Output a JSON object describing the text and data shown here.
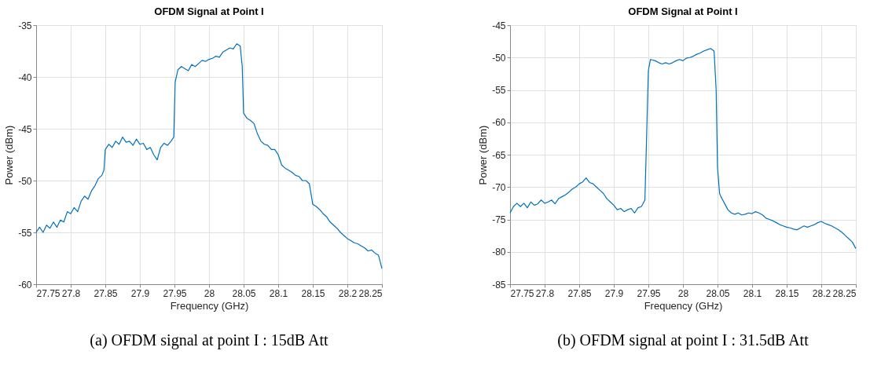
{
  "chart_data": [
    {
      "type": "line",
      "title": "OFDM Signal at Point I",
      "xlabel": "Frequency (GHz)",
      "ylabel": "Power (dBm)",
      "xlim": [
        27.75,
        28.25
      ],
      "xticks": [
        27.75,
        27.8,
        27.85,
        27.9,
        27.95,
        28,
        28.05,
        28.1,
        28.15,
        28.2,
        28.25
      ],
      "ylim": [
        -60,
        -35
      ],
      "yticks": [
        -60,
        -55,
        -50,
        -45,
        -40,
        -35
      ],
      "grid": true,
      "annotations": [
        "(a) OFDM signal at point I : 15dB Att"
      ],
      "x": [
        27.75,
        27.755,
        27.76,
        27.765,
        27.77,
        27.775,
        27.78,
        27.785,
        27.79,
        27.795,
        27.8,
        27.805,
        27.81,
        27.815,
        27.82,
        27.825,
        27.83,
        27.835,
        27.84,
        27.845,
        27.848,
        27.85,
        27.855,
        27.86,
        27.865,
        27.87,
        27.875,
        27.88,
        27.885,
        27.89,
        27.895,
        27.9,
        27.905,
        27.91,
        27.915,
        27.92,
        27.925,
        27.93,
        27.935,
        27.94,
        27.945,
        27.949,
        27.951,
        27.955,
        27.96,
        27.965,
        27.97,
        27.975,
        27.98,
        27.985,
        27.99,
        27.995,
        28.0,
        28.005,
        28.01,
        28.015,
        28.02,
        28.025,
        28.03,
        28.035,
        28.04,
        28.045,
        28.048,
        28.05,
        28.055,
        28.06,
        28.065,
        28.07,
        28.075,
        28.08,
        28.085,
        28.09,
        28.095,
        28.1,
        28.105,
        28.11,
        28.115,
        28.12,
        28.125,
        28.13,
        28.135,
        28.14,
        28.145,
        28.15,
        28.155,
        28.16,
        28.165,
        28.17,
        28.175,
        28.18,
        28.185,
        28.19,
        28.195,
        28.2,
        28.205,
        28.21,
        28.215,
        28.22,
        28.225,
        28.23,
        28.235,
        28.24,
        28.245,
        28.25
      ],
      "series": [
        {
          "color": "#0072bd",
          "values": [
            -55,
            -54.5,
            -55,
            -54.3,
            -54.6,
            -54,
            -54.5,
            -53.8,
            -54,
            -53,
            -53.2,
            -52.6,
            -53,
            -52,
            -51.5,
            -51.8,
            -51,
            -50.5,
            -49.8,
            -49.5,
            -49,
            -47,
            -46.5,
            -46.8,
            -46.2,
            -46.5,
            -45.8,
            -46.3,
            -46.2,
            -46.6,
            -46,
            -46.5,
            -46.4,
            -47,
            -46.8,
            -47.5,
            -48,
            -46.8,
            -46.4,
            -46.6,
            -46.2,
            -45.8,
            -40.5,
            -39.3,
            -39,
            -39.2,
            -39.4,
            -38.8,
            -39,
            -38.7,
            -38.4,
            -38.5,
            -38.3,
            -38.2,
            -38,
            -38.1,
            -37.6,
            -37.4,
            -37.2,
            -37.3,
            -36.8,
            -37,
            -39,
            -43.5,
            -44,
            -44.2,
            -44.5,
            -45.5,
            -46.2,
            -46.5,
            -46.6,
            -47,
            -47,
            -47.5,
            -48.5,
            -48.8,
            -49,
            -49.2,
            -49.5,
            -49.6,
            -50,
            -50,
            -50.3,
            -52.3,
            -52.5,
            -52.8,
            -53.2,
            -53.5,
            -54,
            -54.3,
            -54.6,
            -55,
            -55.3,
            -55.6,
            -55.8,
            -56,
            -56.1,
            -56.3,
            -56.5,
            -56.8,
            -56.7,
            -57,
            -57.2,
            -58.5
          ]
        }
      ]
    },
    {
      "type": "line",
      "title": "OFDM Signal at Point I",
      "xlabel": "Frequency (GHz)",
      "ylabel": "Power (dBm)",
      "xlim": [
        27.75,
        28.25
      ],
      "xticks": [
        27.75,
        27.8,
        27.85,
        27.9,
        27.95,
        28,
        28.05,
        28.1,
        28.15,
        28.2,
        28.25
      ],
      "ylim": [
        -85,
        -45
      ],
      "yticks": [
        -85,
        -80,
        -75,
        -70,
        -65,
        -60,
        -55,
        -50,
        -45
      ],
      "grid": true,
      "annotations": [
        "(b) OFDM signal at point I : 31.5dB Att"
      ],
      "x": [
        27.75,
        27.755,
        27.76,
        27.765,
        27.77,
        27.775,
        27.78,
        27.785,
        27.79,
        27.795,
        27.8,
        27.805,
        27.81,
        27.815,
        27.82,
        27.825,
        27.83,
        27.835,
        27.84,
        27.845,
        27.85,
        27.855,
        27.86,
        27.865,
        27.87,
        27.875,
        27.88,
        27.885,
        27.89,
        27.895,
        27.9,
        27.905,
        27.91,
        27.915,
        27.92,
        27.925,
        27.93,
        27.935,
        27.94,
        27.945,
        27.948,
        27.95,
        27.953,
        27.96,
        27.965,
        27.97,
        27.975,
        27.98,
        27.985,
        27.99,
        27.995,
        28.0,
        28.005,
        28.01,
        28.015,
        28.02,
        28.025,
        28.03,
        28.035,
        28.04,
        28.045,
        28.048,
        28.05,
        28.053,
        28.055,
        28.06,
        28.065,
        28.07,
        28.075,
        28.08,
        28.085,
        28.09,
        28.095,
        28.1,
        28.105,
        28.11,
        28.115,
        28.12,
        28.125,
        28.13,
        28.135,
        28.14,
        28.145,
        28.15,
        28.155,
        28.16,
        28.165,
        28.17,
        28.175,
        28.18,
        28.185,
        28.19,
        28.195,
        28.2,
        28.205,
        28.21,
        28.215,
        28.22,
        28.225,
        28.23,
        28.235,
        28.24,
        28.245,
        28.25
      ],
      "series": [
        {
          "color": "#0072bd",
          "values": [
            -74,
            -73,
            -72.5,
            -73,
            -72.5,
            -73.2,
            -72.3,
            -72.8,
            -72.6,
            -72,
            -72.5,
            -72.3,
            -72,
            -72.6,
            -71.8,
            -71.5,
            -71.2,
            -70.8,
            -70.3,
            -70,
            -69.5,
            -69.2,
            -68.6,
            -69.3,
            -69.5,
            -70,
            -70.5,
            -71,
            -71.8,
            -72.3,
            -72.8,
            -73.5,
            -73.3,
            -73.8,
            -73.5,
            -73.3,
            -74,
            -73.2,
            -73,
            -72,
            -60,
            -52,
            -50.3,
            -50.5,
            -50.8,
            -51,
            -50.8,
            -51,
            -50.8,
            -50.5,
            -50.3,
            -50.5,
            -50.1,
            -50,
            -49.8,
            -49.5,
            -49.3,
            -49,
            -48.8,
            -48.6,
            -49,
            -55,
            -67,
            -71,
            -71.5,
            -72.5,
            -73.5,
            -74,
            -74.2,
            -74,
            -74.3,
            -74.2,
            -74,
            -74.1,
            -73.8,
            -74,
            -74.3,
            -74.8,
            -75,
            -75.2,
            -75.5,
            -75.8,
            -76,
            -76.2,
            -76.3,
            -76.5,
            -76.6,
            -76.3,
            -76,
            -76.2,
            -76,
            -75.8,
            -75.5,
            -75.3,
            -75.6,
            -75.8,
            -76,
            -76.3,
            -76.6,
            -77,
            -77.5,
            -78,
            -78.5,
            -79.5
          ]
        }
      ]
    }
  ]
}
